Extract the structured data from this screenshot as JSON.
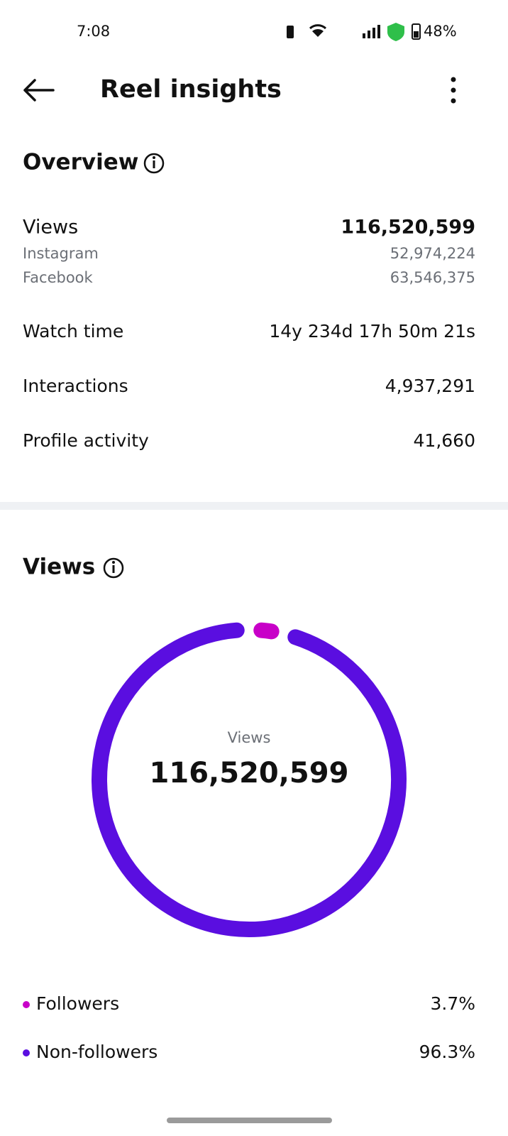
{
  "status_bar": {
    "time": "7:08",
    "battery": "48%"
  },
  "header": {
    "title": "Reel insights"
  },
  "overview": {
    "title": "Overview",
    "views": {
      "label": "Views",
      "value": "116,520,599",
      "breakdown": [
        {
          "label": "Instagram",
          "value": "52,974,224"
        },
        {
          "label": "Facebook",
          "value": "63,546,375"
        }
      ]
    },
    "rows": [
      {
        "label": "Watch time",
        "value": "14y 234d 17h 50m 21s"
      },
      {
        "label": "Interactions",
        "value": "4,937,291"
      },
      {
        "label": "Profile activity",
        "value": "41,660"
      }
    ]
  },
  "views_section": {
    "title": "Views"
  },
  "chart_data": {
    "type": "donut",
    "center_label": "Views",
    "center_value": "116,520,599",
    "categories": [
      "Followers",
      "Non-followers"
    ],
    "values": [
      3.7,
      96.3
    ],
    "value_labels": [
      "3.7%",
      "96.3%"
    ],
    "colors": [
      "#c800c8",
      "#5a0ee0"
    ]
  }
}
